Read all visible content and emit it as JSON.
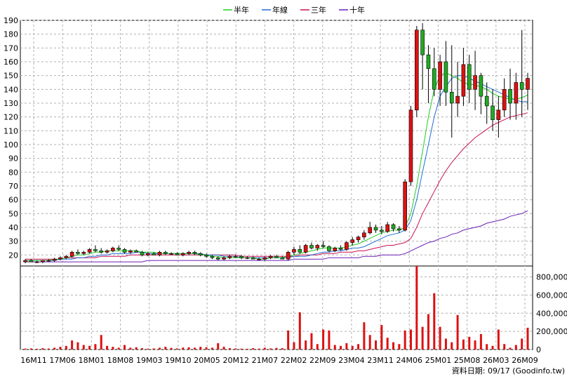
{
  "chart_data": {
    "type": "candlestick",
    "legend": [
      {
        "name": "半年",
        "color": "#22cc22"
      },
      {
        "name": "年線",
        "color": "#1f6fd6"
      },
      {
        "name": "三年",
        "color": "#cc1155"
      },
      {
        "name": "十年",
        "color": "#6a1fb5"
      }
    ],
    "legend_position": "top-center",
    "price_axis": {
      "ticks": [
        20,
        30,
        40,
        50,
        60,
        70,
        80,
        90,
        100,
        110,
        120,
        130,
        140,
        150,
        160,
        170,
        180,
        190
      ],
      "ylim": [
        12,
        190
      ]
    },
    "volume_axis": {
      "ticks": [
        0,
        200000,
        400000,
        600000,
        800000
      ],
      "tick_labels": [
        "0",
        "200,000",
        "400,000",
        "600,000",
        "800,000"
      ],
      "ylim": [
        0,
        920000
      ]
    },
    "x_ticks": [
      "16M11",
      "17M06",
      "18M01",
      "18M08",
      "19M03",
      "19M10",
      "20M05",
      "20M12",
      "21M07",
      "22M02",
      "22M09",
      "23M04",
      "23M11",
      "24M06",
      "25M01",
      "25M08",
      "26M03",
      "26M09"
    ],
    "grid": true,
    "up_color": "#dd1111",
    "down_color": "#22aa22",
    "candles": [
      [
        15,
        17,
        14,
        16
      ],
      [
        16,
        17,
        15,
        15
      ],
      [
        15,
        16,
        14,
        15
      ],
      [
        15,
        16,
        14,
        16
      ],
      [
        16,
        17,
        15,
        16
      ],
      [
        16,
        18,
        15,
        17
      ],
      [
        17,
        19,
        16,
        18
      ],
      [
        18,
        20,
        17,
        19
      ],
      [
        19,
        23,
        18,
        22
      ],
      [
        22,
        24,
        20,
        21
      ],
      [
        21,
        23,
        20,
        22
      ],
      [
        22,
        25,
        21,
        24
      ],
      [
        24,
        27,
        22,
        23
      ],
      [
        23,
        25,
        21,
        22
      ],
      [
        22,
        24,
        21,
        23
      ],
      [
        23,
        26,
        22,
        25
      ],
      [
        25,
        27,
        23,
        24
      ],
      [
        24,
        25,
        21,
        22
      ],
      [
        22,
        24,
        21,
        23
      ],
      [
        23,
        24,
        22,
        22
      ],
      [
        22,
        23,
        19,
        20
      ],
      [
        20,
        22,
        19,
        21
      ],
      [
        21,
        22,
        20,
        20
      ],
      [
        20,
        23,
        19,
        22
      ],
      [
        22,
        23,
        20,
        21
      ],
      [
        21,
        22,
        20,
        21
      ],
      [
        21,
        22,
        20,
        20
      ],
      [
        20,
        22,
        19,
        21
      ],
      [
        21,
        23,
        20,
        22
      ],
      [
        22,
        23,
        20,
        21
      ],
      [
        21,
        22,
        19,
        20
      ],
      [
        20,
        21,
        18,
        19
      ],
      [
        19,
        20,
        17,
        18
      ],
      [
        18,
        19,
        16,
        17
      ],
      [
        17,
        19,
        16,
        18
      ],
      [
        18,
        20,
        17,
        19
      ],
      [
        19,
        20,
        18,
        19
      ],
      [
        19,
        20,
        17,
        18
      ],
      [
        18,
        19,
        17,
        18
      ],
      [
        18,
        19,
        17,
        17
      ],
      [
        17,
        18,
        16,
        17
      ],
      [
        17,
        19,
        16,
        18
      ],
      [
        18,
        20,
        17,
        19
      ],
      [
        19,
        20,
        18,
        18
      ],
      [
        18,
        19,
        17,
        17
      ],
      [
        17,
        23,
        16,
        22
      ],
      [
        22,
        26,
        20,
        24
      ],
      [
        24,
        27,
        21,
        22
      ],
      [
        22,
        28,
        21,
        27
      ],
      [
        27,
        29,
        24,
        25
      ],
      [
        25,
        28,
        23,
        27
      ],
      [
        27,
        30,
        25,
        26
      ],
      [
        26,
        27,
        22,
        23
      ],
      [
        23,
        26,
        22,
        25
      ],
      [
        25,
        27,
        23,
        24
      ],
      [
        24,
        30,
        23,
        29
      ],
      [
        29,
        33,
        27,
        31
      ],
      [
        31,
        34,
        29,
        33
      ],
      [
        33,
        38,
        31,
        36
      ],
      [
        36,
        44,
        35,
        40
      ],
      [
        40,
        42,
        36,
        38
      ],
      [
        38,
        41,
        35,
        37
      ],
      [
        37,
        44,
        36,
        42
      ],
      [
        42,
        43,
        37,
        39
      ],
      [
        39,
        41,
        36,
        38
      ],
      [
        38,
        75,
        37,
        73
      ],
      [
        73,
        128,
        70,
        125
      ],
      [
        125,
        186,
        120,
        183
      ],
      [
        183,
        188,
        140,
        165
      ],
      [
        165,
        172,
        130,
        155
      ],
      [
        155,
        170,
        135,
        140
      ],
      [
        140,
        165,
        128,
        160
      ],
      [
        160,
        175,
        128,
        138
      ],
      [
        138,
        172,
        105,
        130
      ],
      [
        130,
        160,
        120,
        135
      ],
      [
        135,
        170,
        128,
        158
      ],
      [
        158,
        165,
        130,
        140
      ],
      [
        140,
        168,
        125,
        150
      ],
      [
        150,
        152,
        122,
        135
      ],
      [
        135,
        145,
        115,
        128
      ],
      [
        128,
        140,
        110,
        118
      ],
      [
        118,
        135,
        105,
        125
      ],
      [
        125,
        148,
        120,
        140
      ],
      [
        140,
        155,
        118,
        130
      ],
      [
        130,
        152,
        118,
        145
      ],
      [
        145,
        183,
        120,
        140
      ],
      [
        140,
        152,
        125,
        148
      ]
    ],
    "half_year": [
      16,
      16,
      16,
      16,
      16,
      17,
      17,
      18,
      19,
      20,
      20,
      21,
      22,
      22,
      23,
      23,
      23,
      23,
      23,
      23,
      22,
      22,
      22,
      21,
      21,
      21,
      21,
      21,
      21,
      21,
      20,
      20,
      19,
      19,
      18,
      18,
      18,
      18,
      18,
      18,
      17,
      17,
      18,
      18,
      18,
      19,
      20,
      21,
      22,
      23,
      24,
      25,
      25,
      25,
      25,
      26,
      27,
      28,
      30,
      32,
      34,
      36,
      37,
      38,
      38,
      40,
      50,
      70,
      95,
      120,
      140,
      150,
      152,
      150,
      148,
      145,
      144,
      143,
      142,
      140,
      137,
      135,
      134,
      133,
      133,
      134,
      136
    ],
    "year_line": [
      16,
      16,
      16,
      16,
      16,
      16,
      17,
      17,
      17,
      18,
      18,
      19,
      19,
      20,
      20,
      21,
      21,
      21,
      21,
      22,
      22,
      21,
      21,
      21,
      21,
      21,
      21,
      21,
      21,
      21,
      21,
      20,
      20,
      20,
      19,
      19,
      19,
      18,
      18,
      18,
      18,
      18,
      18,
      18,
      18,
      18,
      19,
      19,
      19,
      20,
      21,
      22,
      22,
      23,
      23,
      24,
      25,
      25,
      26,
      28,
      30,
      32,
      34,
      35,
      36,
      38,
      45,
      60,
      80,
      100,
      120,
      135,
      142,
      148,
      150,
      150,
      148,
      146,
      144,
      142,
      140,
      138,
      136,
      134,
      132,
      131,
      131
    ],
    "three_year": [
      17,
      17,
      17,
      17,
      17,
      17,
      17,
      18,
      18,
      18,
      18,
      18,
      18,
      19,
      19,
      19,
      19,
      19,
      20,
      20,
      20,
      20,
      20,
      20,
      20,
      20,
      20,
      20,
      20,
      20,
      20,
      20,
      20,
      20,
      20,
      20,
      20,
      19,
      19,
      19,
      19,
      19,
      19,
      19,
      19,
      19,
      19,
      20,
      20,
      20,
      20,
      21,
      21,
      21,
      22,
      22,
      22,
      23,
      23,
      24,
      25,
      26,
      27,
      27,
      28,
      29,
      32,
      40,
      50,
      58,
      66,
      74,
      81,
      87,
      92,
      97,
      101,
      105,
      108,
      111,
      114,
      116,
      118,
      120,
      121,
      122,
      123
    ],
    "ten_year": [
      15,
      15,
      15,
      15,
      15,
      15,
      15,
      15,
      15,
      15,
      15,
      15,
      15,
      15,
      15,
      15,
      15,
      15,
      15,
      15,
      15,
      16,
      16,
      16,
      16,
      16,
      16,
      16,
      16,
      16,
      16,
      16,
      16,
      16,
      16,
      16,
      16,
      16,
      16,
      16,
      16,
      16,
      16,
      16,
      16,
      16,
      17,
      17,
      17,
      17,
      17,
      17,
      18,
      18,
      18,
      18,
      18,
      18,
      19,
      19,
      19,
      20,
      20,
      20,
      20,
      21,
      23,
      25,
      27,
      29,
      30,
      32,
      33,
      35,
      36,
      38,
      39,
      40,
      41,
      43,
      44,
      45,
      46,
      48,
      49,
      50,
      52
    ],
    "volume": [
      10000,
      12000,
      8000,
      15000,
      11000,
      20000,
      30000,
      40000,
      100000,
      80000,
      50000,
      40000,
      60000,
      160000,
      40000,
      30000,
      20000,
      50000,
      20000,
      25000,
      15000,
      10000,
      12000,
      20000,
      30000,
      18000,
      12000,
      22000,
      25000,
      20000,
      30000,
      25000,
      20000,
      70000,
      30000,
      15000,
      12000,
      10000,
      8000,
      15000,
      10000,
      20000,
      12000,
      18000,
      15000,
      210000,
      80000,
      410000,
      100000,
      180000,
      60000,
      220000,
      210000,
      50000,
      40000,
      70000,
      40000,
      60000,
      300000,
      160000,
      100000,
      270000,
      130000,
      80000,
      60000,
      210000,
      220000,
      920000,
      250000,
      390000,
      620000,
      250000,
      120000,
      80000,
      380000,
      110000,
      140000,
      100000,
      170000,
      60000,
      40000,
      220000,
      60000,
      20000,
      50000,
      120000,
      240000
    ]
  },
  "footer": {
    "date_label": "資料日期: 09/17",
    "source_label": "(Goodinfo.tw)"
  }
}
